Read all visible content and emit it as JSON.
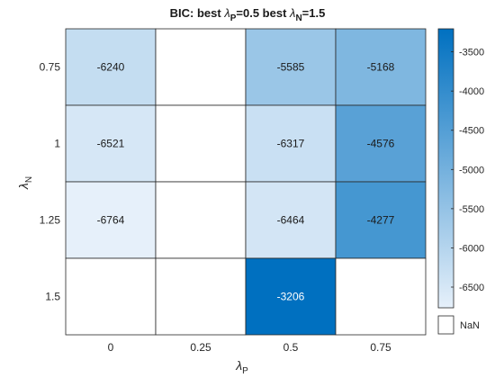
{
  "chart_data": {
    "type": "heatmap",
    "title": {
      "prefix": "BIC: best ",
      "lambda1_sub": "P",
      "lambda1_val": "=0.5 best  ",
      "lambda2_sub": "N",
      "lambda2_val": "=1.5"
    },
    "xlabel": {
      "symbol": "λ",
      "sub": "P"
    },
    "ylabel": {
      "symbol": "λ",
      "sub": "N"
    },
    "x_categories": [
      "0",
      "0.25",
      "0.5",
      "0.75"
    ],
    "y_categories": [
      "0.75",
      "1",
      "1.25",
      "1.5"
    ],
    "values": [
      [
        -6240,
        null,
        -5585,
        -5168
      ],
      [
        -6521,
        null,
        -6317,
        -4576
      ],
      [
        -6764,
        null,
        -6464,
        -4277
      ],
      [
        null,
        null,
        -3206,
        null
      ]
    ],
    "colorbar": {
      "range": [
        -6764,
        -3206
      ],
      "ticks": [
        -3500,
        -4000,
        -4500,
        -5000,
        -5500,
        -6000,
        -6500
      ],
      "tick_labels": [
        "-3500",
        "-4000",
        "-4500",
        "-5000",
        "-5500",
        "-6000",
        "-6500"
      ],
      "colormap": [
        "#e6f0fa",
        "#0070c0"
      ]
    },
    "missing_label": "NaN",
    "missing_color": "#ffffff"
  }
}
